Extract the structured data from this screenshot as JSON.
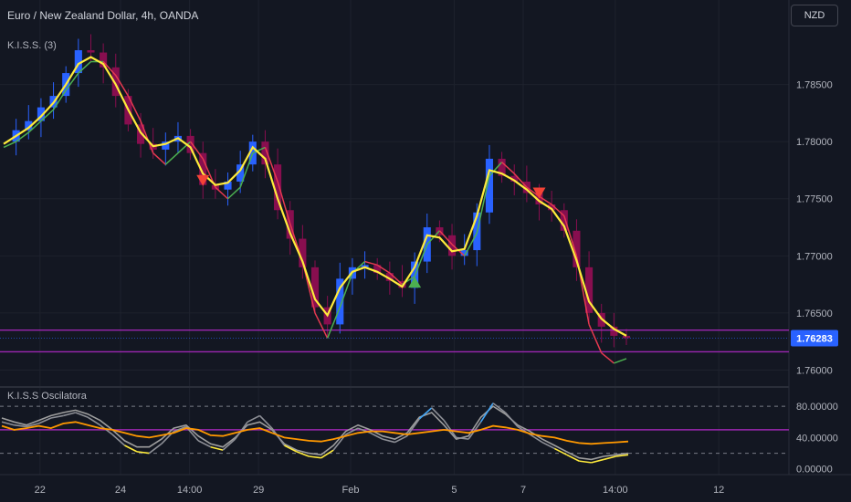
{
  "header": {
    "title": "Euro / New Zealand Dollar, 4h, OANDA",
    "currency_button": "NZD"
  },
  "indicators": {
    "main_label": "K.I.S.S. (3)",
    "osc_label": "K.I.S.S Oscilatora"
  },
  "colors": {
    "background": "#131722",
    "up_candle": "#2962ff",
    "down_candle": "#880e4f",
    "fast_ma": "#ffeb3b",
    "slow_ma_down": "#e53950",
    "slow_ma_up": "#4caf50",
    "level_line": "#9c27b0",
    "price_badge": "#2962ff",
    "osc_orange": "#ff9800",
    "osc_gray": "#9e9e9e"
  },
  "chart_data": [
    {
      "type": "candlestick",
      "title": "Euro / New Zealand Dollar, 4h, OANDA",
      "y_ticks": [
        "1.78500",
        "1.78000",
        "1.77500",
        "1.77000",
        "1.76500",
        "1.76000"
      ],
      "ylim": [
        1.759,
        1.79
      ],
      "x_ticks": [
        "22",
        "24",
        "14:00",
        "29",
        "Feb",
        "5",
        "7",
        "14:00",
        "12"
      ],
      "last_price_label": "1.76283",
      "horizontal_levels": [
        1.7635,
        1.7616
      ],
      "signal_markers": [
        {
          "type": "sell",
          "label": "down-triangle",
          "near_x": "14:00",
          "price": 1.7766
        },
        {
          "type": "buy",
          "label": "up-triangle",
          "near_x": "Feb",
          "price": 1.7677
        },
        {
          "type": "sell",
          "label": "down-triangle",
          "near_x": "7",
          "price": 1.7755
        }
      ],
      "series": [
        {
          "name": "price",
          "values": [
            1.78,
            1.781,
            1.7818,
            1.783,
            1.784,
            1.786,
            1.788,
            1.7878,
            1.7865,
            1.784,
            1.7815,
            1.7798,
            1.7793,
            1.78,
            1.7805,
            1.779,
            1.7762,
            1.7758,
            1.7765,
            1.778,
            1.78,
            1.778,
            1.774,
            1.7715,
            1.769,
            1.7655,
            1.764,
            1.768,
            1.769,
            1.7692,
            1.7685,
            1.7678,
            1.7672,
            1.7695,
            1.7725,
            1.7718,
            1.77,
            1.7705,
            1.7738,
            1.7785,
            1.777,
            1.7765,
            1.7755,
            1.7745,
            1.774,
            1.7722,
            1.769,
            1.765,
            1.7638,
            1.763,
            1.7628
          ]
        },
        {
          "name": "fast_ma",
          "values": [
            1.7798,
            1.7805,
            1.7812,
            1.7822,
            1.7834,
            1.785,
            1.7868,
            1.7874,
            1.7868,
            1.785,
            1.7828,
            1.7808,
            1.7796,
            1.7798,
            1.7803,
            1.7795,
            1.7772,
            1.7762,
            1.7764,
            1.7775,
            1.7795,
            1.7785,
            1.775,
            1.772,
            1.7695,
            1.7662,
            1.7648,
            1.7672,
            1.7686,
            1.769,
            1.7686,
            1.768,
            1.7673,
            1.769,
            1.7718,
            1.7716,
            1.7704,
            1.7706,
            1.7735,
            1.7775,
            1.7772,
            1.7766,
            1.7758,
            1.7748,
            1.7741,
            1.7726,
            1.7696,
            1.766,
            1.7645,
            1.7636,
            1.763
          ]
        },
        {
          "name": "slow_ma",
          "values": [
            1.7795,
            1.78,
            1.7808,
            1.7818,
            1.7828,
            1.7845,
            1.786,
            1.787,
            1.787,
            1.7858,
            1.784,
            1.7818,
            1.779,
            1.778,
            1.779,
            1.78,
            1.7785,
            1.776,
            1.775,
            1.776,
            1.779,
            1.7795,
            1.7765,
            1.7728,
            1.7695,
            1.765,
            1.7628,
            1.7655,
            1.7685,
            1.7695,
            1.7692,
            1.7685,
            1.7675,
            1.7682,
            1.771,
            1.7722,
            1.771,
            1.77,
            1.772,
            1.777,
            1.7782,
            1.7772,
            1.776,
            1.7752,
            1.7745,
            1.7735,
            1.77,
            1.764,
            1.7615,
            1.7606,
            1.761
          ]
        }
      ]
    },
    {
      "type": "line",
      "title": "K.I.S.S Oscilatora",
      "y_ticks": [
        "80.00000",
        "40.00000",
        "0.00000"
      ],
      "ylim": [
        -5,
        100
      ],
      "dashed_levels": [
        80,
        20
      ],
      "solid_level": 50,
      "series": [
        {
          "name": "orange",
          "values": [
            55,
            50,
            52,
            55,
            52,
            58,
            60,
            56,
            52,
            50,
            46,
            42,
            40,
            43,
            46,
            52,
            50,
            43,
            42,
            46,
            50,
            52,
            46,
            40,
            38,
            36,
            35,
            38,
            42,
            46,
            48,
            48,
            46,
            44,
            46,
            48,
            50,
            48,
            46,
            50,
            55,
            53,
            50,
            45,
            42,
            40,
            36,
            33,
            32,
            33,
            34,
            35
          ]
        },
        {
          "name": "gray",
          "values": [
            65,
            60,
            56,
            62,
            68,
            72,
            75,
            70,
            62,
            50,
            36,
            28,
            28,
            38,
            52,
            56,
            42,
            32,
            28,
            40,
            56,
            60,
            50,
            32,
            24,
            20,
            18,
            30,
            48,
            56,
            50,
            42,
            38,
            46,
            66,
            72,
            56,
            38,
            42,
            66,
            80,
            70,
            56,
            48,
            38,
            30,
            22,
            14,
            12,
            16,
            18,
            20
          ]
        },
        {
          "name": "colored",
          "values": [
            60,
            56,
            54,
            58,
            65,
            68,
            72,
            66,
            56,
            44,
            30,
            22,
            20,
            32,
            48,
            54,
            36,
            28,
            24,
            38,
            60,
            68,
            52,
            30,
            22,
            16,
            14,
            24,
            44,
            52,
            46,
            38,
            34,
            42,
            64,
            78,
            62,
            40,
            38,
            60,
            84,
            72,
            54,
            44,
            34,
            26,
            18,
            10,
            8,
            12,
            16,
            18
          ]
        }
      ]
    }
  ]
}
